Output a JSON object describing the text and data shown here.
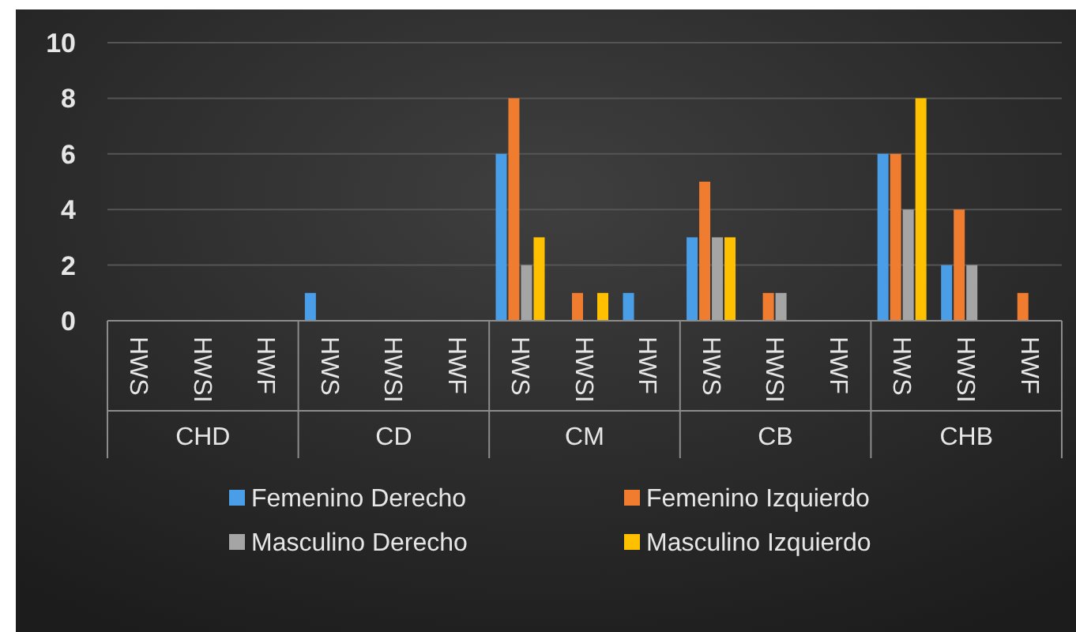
{
  "chart_data": {
    "type": "bar",
    "categories": [
      "HWS",
      "HWSI",
      "HWF",
      "HWS",
      "HWSI",
      "HWF",
      "HWS",
      "HWSI",
      "HWF",
      "HWS",
      "HWSI",
      "HWF",
      "HWS",
      "HWSI",
      "HWF"
    ],
    "annotations": [
      "CHD",
      "CD",
      "CM",
      "CB",
      "CHB"
    ],
    "series": [
      {
        "name": "Femenino  Derecho",
        "color": "#4a9ee8",
        "values": [
          0,
          0,
          0,
          1,
          0,
          0,
          6,
          0,
          1,
          3,
          0,
          0,
          6,
          2,
          0
        ]
      },
      {
        "name": "Femenino  Izquierdo",
        "color": "#f07c30",
        "values": [
          0,
          0,
          0,
          0,
          0,
          0,
          8,
          1,
          0,
          5,
          1,
          0,
          6,
          4,
          1
        ]
      },
      {
        "name": "Masculino Derecho",
        "color": "#a5a5a5",
        "values": [
          0,
          0,
          0,
          0,
          0,
          0,
          2,
          0,
          0,
          3,
          1,
          0,
          4,
          2,
          0
        ]
      },
      {
        "name": "Masculino Izquierdo",
        "color": "#ffc000",
        "values": [
          0,
          0,
          0,
          0,
          0,
          0,
          3,
          1,
          0,
          3,
          0,
          0,
          8,
          0,
          0
        ]
      }
    ],
    "ylim": [
      0,
      10
    ],
    "yticks": [
      0,
      2,
      4,
      6,
      8,
      10
    ],
    "grid": "y",
    "legend": "bottom"
  }
}
